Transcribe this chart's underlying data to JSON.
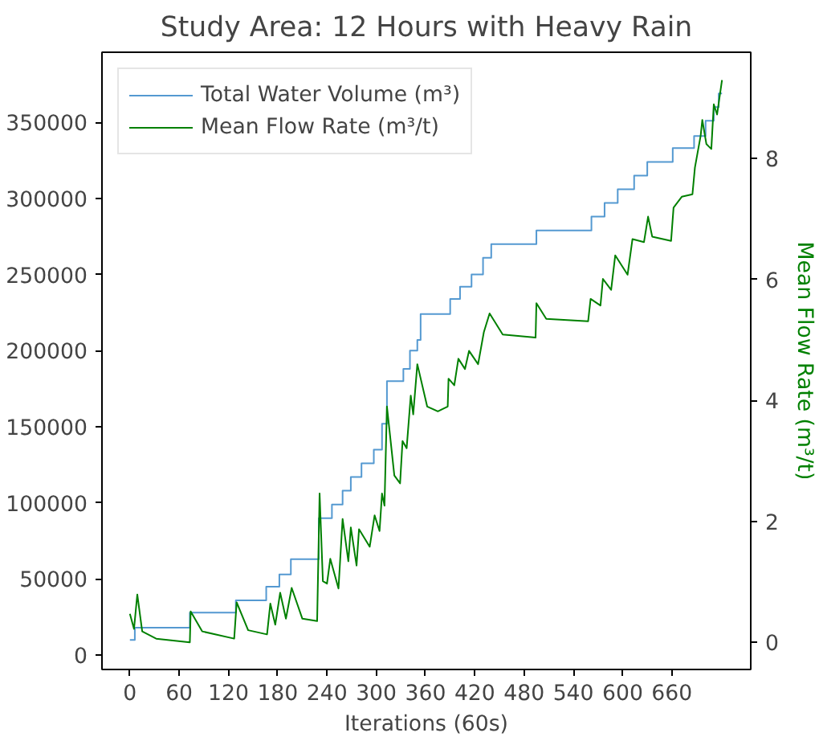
{
  "chart_data": {
    "type": "line",
    "title": "Study Area: 12 Hours with Heavy Rain",
    "xlabel": "Iterations (60s)",
    "y2label": "Mean Flow Rate (m³/t)",
    "legend": "top left",
    "grid": false,
    "xlim": [
      -34,
      756
    ],
    "xticks": [
      0,
      60,
      120,
      180,
      240,
      300,
      360,
      420,
      480,
      540,
      600,
      660
    ],
    "ylim": [
      -9400,
      396000
    ],
    "yticks": [
      0,
      50000,
      100000,
      150000,
      200000,
      250000,
      300000,
      350000
    ],
    "y2lim": [
      -0.45,
      9.76
    ],
    "y2ticks": [
      0,
      2,
      4,
      6,
      8
    ],
    "series": [
      {
        "name": "Total Water Volume (m³)",
        "type": "step",
        "color": "#5499d1",
        "x": [
          0,
          6,
          73,
          129,
          166,
          182,
          196,
          230,
          246,
          259,
          269,
          282,
          297,
          307,
          313,
          333,
          341,
          350,
          354,
          390,
          402,
          416,
          430,
          440,
          495,
          562,
          578,
          594,
          614,
          630,
          661,
          687,
          701,
          711,
          717,
          721
        ],
        "values": [
          10000,
          18000,
          28000,
          36000,
          45000,
          53000,
          63000,
          90000,
          99000,
          108000,
          117000,
          126000,
          135000,
          152000,
          180000,
          188000,
          200000,
          207000,
          224000,
          234000,
          242000,
          250000,
          261000,
          270000,
          279000,
          288000,
          297000,
          306000,
          315000,
          324000,
          333000,
          341000,
          351000,
          360000,
          369000,
          369000
        ]
      },
      {
        "name": "Mean Flow Rate (m³/t)",
        "axis": "y2",
        "color": "#008000",
        "x": [
          0,
          5,
          9,
          15,
          32,
          73,
          74,
          88,
          127,
          130,
          144,
          167,
          171,
          177,
          183,
          190,
          197,
          210,
          228,
          231,
          235,
          240,
          244,
          254,
          259,
          266,
          269,
          276,
          279,
          292,
          298,
          304,
          307,
          310,
          313,
          322,
          329,
          332,
          337,
          342,
          345,
          350,
          362,
          375,
          387,
          388,
          395,
          400,
          408,
          413,
          424,
          431,
          438,
          454,
          494,
          495,
          507,
          558,
          561,
          573,
          576,
          586,
          591,
          606,
          612,
          626,
          631,
          636,
          659,
          662,
          672,
          685,
          688,
          695,
          697,
          702,
          708,
          711,
          715,
          721
        ],
        "values": [
          0.47,
          0.22,
          0.79,
          0.18,
          0.06,
          0.0,
          0.51,
          0.18,
          0.06,
          0.66,
          0.2,
          0.13,
          0.64,
          0.29,
          0.82,
          0.39,
          0.9,
          0.39,
          0.35,
          2.46,
          1.01,
          0.97,
          1.38,
          0.89,
          2.04,
          1.34,
          1.9,
          1.27,
          1.87,
          1.58,
          2.1,
          1.84,
          2.46,
          2.26,
          3.9,
          2.76,
          2.63,
          3.33,
          3.21,
          4.08,
          3.77,
          4.6,
          3.9,
          3.82,
          3.9,
          4.36,
          4.25,
          4.69,
          4.52,
          4.82,
          4.6,
          5.13,
          5.44,
          5.09,
          5.04,
          5.61,
          5.35,
          5.31,
          5.68,
          5.57,
          6.01,
          5.83,
          6.4,
          6.08,
          6.67,
          6.62,
          7.04,
          6.71,
          6.64,
          7.19,
          7.37,
          7.41,
          7.85,
          8.38,
          8.64,
          8.24,
          8.16,
          8.9,
          8.73,
          9.3
        ]
      }
    ]
  }
}
